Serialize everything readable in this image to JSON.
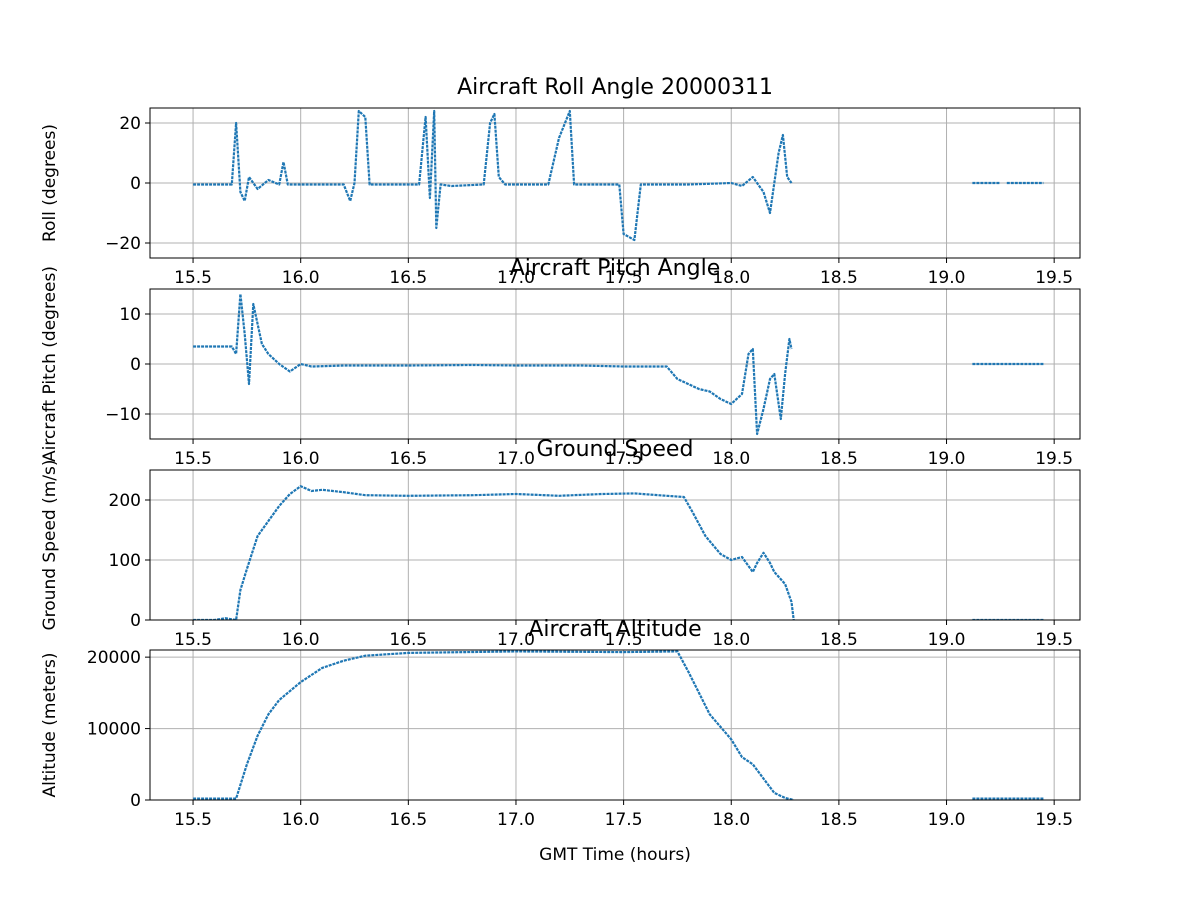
{
  "chart_data": [
    {
      "type": "scatter",
      "title": "Aircraft Roll Angle 20000311",
      "xlabel": "",
      "ylabel": "Roll (degrees)",
      "xlim": [
        15.3,
        19.62
      ],
      "ylim": [
        -25,
        25
      ],
      "xticks": [
        "15.5",
        "16.0",
        "16.5",
        "17.0",
        "17.5",
        "18.0",
        "18.5",
        "19.0",
        "19.5"
      ],
      "yticks": [
        "20",
        "0",
        "−20"
      ],
      "ytick_values": [
        20,
        0,
        -20
      ],
      "grid": true,
      "series": [
        {
          "values": [
            [
              15.5,
              -0.5
            ],
            [
              15.68,
              -0.5
            ],
            [
              15.7,
              20
            ],
            [
              15.72,
              -3
            ],
            [
              15.74,
              -6
            ],
            [
              15.76,
              2
            ],
            [
              15.8,
              -2
            ],
            [
              15.85,
              1
            ],
            [
              15.9,
              -0.5
            ],
            [
              15.92,
              7
            ],
            [
              15.94,
              -0.5
            ],
            [
              16.2,
              -0.5
            ],
            [
              16.23,
              -6
            ],
            [
              16.25,
              0
            ],
            [
              16.27,
              24
            ],
            [
              16.3,
              22
            ],
            [
              16.32,
              -0.5
            ],
            [
              16.55,
              -0.5
            ],
            [
              16.58,
              22
            ],
            [
              16.6,
              -5
            ],
            [
              16.62,
              24
            ],
            [
              16.63,
              -15
            ],
            [
              16.65,
              -0.5
            ],
            [
              16.7,
              -1
            ],
            [
              16.85,
              -0.5
            ],
            [
              16.88,
              20
            ],
            [
              16.9,
              23
            ],
            [
              16.92,
              2
            ],
            [
              16.95,
              -0.5
            ],
            [
              17.15,
              -0.5
            ],
            [
              17.2,
              15
            ],
            [
              17.25,
              24
            ],
            [
              17.27,
              -0.5
            ],
            [
              17.48,
              -0.5
            ],
            [
              17.5,
              -17
            ],
            [
              17.55,
              -19
            ],
            [
              17.58,
              -0.5
            ],
            [
              17.8,
              -0.5
            ],
            [
              18.0,
              0
            ],
            [
              18.05,
              -1
            ],
            [
              18.1,
              2
            ],
            [
              18.15,
              -3
            ],
            [
              18.18,
              -10
            ],
            [
              18.22,
              10
            ],
            [
              18.24,
              16
            ],
            [
              18.26,
              2
            ],
            [
              18.28,
              0
            ]
          ]
        },
        {
          "values": [
            [
              19.12,
              0
            ],
            [
              19.25,
              0
            ]
          ]
        },
        {
          "values": [
            [
              19.28,
              0
            ],
            [
              19.45,
              0
            ]
          ]
        }
      ]
    },
    {
      "type": "scatter",
      "title": "Aircraft Pitch Angle",
      "xlabel": "",
      "ylabel": "Aircraft Pitch (degrees)",
      "xlim": [
        15.3,
        19.62
      ],
      "ylim": [
        -15,
        15
      ],
      "xticks": [
        "15.5",
        "16.0",
        "16.5",
        "17.0",
        "17.5",
        "18.0",
        "18.5",
        "19.0",
        "19.5"
      ],
      "yticks": [
        "10",
        "0",
        "−10"
      ],
      "ytick_values": [
        10,
        0,
        -10
      ],
      "grid": true,
      "series": [
        {
          "values": [
            [
              15.5,
              3.5
            ],
            [
              15.68,
              3.5
            ],
            [
              15.7,
              2
            ],
            [
              15.72,
              14
            ],
            [
              15.74,
              6
            ],
            [
              15.76,
              -4
            ],
            [
              15.78,
              12
            ],
            [
              15.8,
              8
            ],
            [
              15.82,
              4
            ],
            [
              15.85,
              2
            ],
            [
              15.9,
              0
            ],
            [
              15.95,
              -1.5
            ],
            [
              16.0,
              0
            ],
            [
              16.05,
              -0.5
            ],
            [
              16.2,
              -0.3
            ],
            [
              16.5,
              -0.3
            ],
            [
              16.8,
              -0.2
            ],
            [
              17.0,
              -0.3
            ],
            [
              17.3,
              -0.3
            ],
            [
              17.5,
              -0.5
            ],
            [
              17.7,
              -0.5
            ],
            [
              17.75,
              -3
            ],
            [
              17.8,
              -4
            ],
            [
              17.85,
              -5
            ],
            [
              17.9,
              -5.5
            ],
            [
              17.95,
              -7
            ],
            [
              18.0,
              -8
            ],
            [
              18.05,
              -6
            ],
            [
              18.08,
              2
            ],
            [
              18.1,
              3
            ],
            [
              18.12,
              -14
            ],
            [
              18.15,
              -9
            ],
            [
              18.18,
              -3
            ],
            [
              18.2,
              -2
            ],
            [
              18.23,
              -11
            ],
            [
              18.25,
              -2
            ],
            [
              18.27,
              5
            ],
            [
              18.28,
              3
            ]
          ]
        },
        {
          "values": [
            [
              19.12,
              0
            ],
            [
              19.45,
              0
            ]
          ]
        }
      ]
    },
    {
      "type": "scatter",
      "title": "Ground Speed",
      "xlabel": "",
      "ylabel": "Ground Speed (m/s)",
      "xlim": [
        15.3,
        19.62
      ],
      "ylim": [
        0,
        250
      ],
      "xticks": [
        "15.5",
        "16.0",
        "16.5",
        "17.0",
        "17.5",
        "18.0",
        "18.5",
        "19.0",
        "19.5"
      ],
      "yticks": [
        "200",
        "100",
        "0"
      ],
      "ytick_values": [
        200,
        100,
        0
      ],
      "grid": true,
      "series": [
        {
          "values": [
            [
              15.5,
              0
            ],
            [
              15.6,
              0
            ],
            [
              15.65,
              3
            ],
            [
              15.7,
              0
            ],
            [
              15.72,
              50
            ],
            [
              15.75,
              85
            ],
            [
              15.8,
              140
            ],
            [
              15.85,
              165
            ],
            [
              15.9,
              190
            ],
            [
              15.95,
              210
            ],
            [
              16.0,
              223
            ],
            [
              16.05,
              215
            ],
            [
              16.1,
              217
            ],
            [
              16.2,
              213
            ],
            [
              16.3,
              208
            ],
            [
              16.5,
              207
            ],
            [
              16.8,
              208
            ],
            [
              17.0,
              210
            ],
            [
              17.2,
              207
            ],
            [
              17.4,
              210
            ],
            [
              17.55,
              211
            ],
            [
              17.7,
              207
            ],
            [
              17.78,
              205
            ],
            [
              17.82,
              180
            ],
            [
              17.88,
              140
            ],
            [
              17.95,
              110
            ],
            [
              18.0,
              100
            ],
            [
              18.05,
              105
            ],
            [
              18.1,
              80
            ],
            [
              18.12,
              95
            ],
            [
              18.15,
              112
            ],
            [
              18.18,
              95
            ],
            [
              18.2,
              80
            ],
            [
              18.25,
              60
            ],
            [
              18.28,
              30
            ],
            [
              18.29,
              0
            ]
          ]
        },
        {
          "values": [
            [
              19.12,
              0
            ],
            [
              19.45,
              0
            ]
          ]
        }
      ]
    },
    {
      "type": "scatter",
      "title": "Aircraft Altitude",
      "xlabel": "GMT Time (hours)",
      "ylabel": "Altitude (meters)",
      "xlim": [
        15.3,
        19.62
      ],
      "ylim": [
        0,
        21000
      ],
      "xticks": [
        "15.5",
        "16.0",
        "16.5",
        "17.0",
        "17.5",
        "18.0",
        "18.5",
        "19.0",
        "19.5"
      ],
      "yticks": [
        "20000",
        "10000",
        "0"
      ],
      "ytick_values": [
        20000,
        10000,
        0
      ],
      "grid": true,
      "series": [
        {
          "values": [
            [
              15.5,
              200
            ],
            [
              15.7,
              200
            ],
            [
              15.75,
              5000
            ],
            [
              15.8,
              9000
            ],
            [
              15.85,
              12000
            ],
            [
              15.9,
              14000
            ],
            [
              16.0,
              16500
            ],
            [
              16.1,
              18500
            ],
            [
              16.2,
              19500
            ],
            [
              16.3,
              20200
            ],
            [
              16.5,
              20600
            ],
            [
              17.0,
              20800
            ],
            [
              17.5,
              20700
            ],
            [
              17.75,
              20800
            ],
            [
              17.8,
              18000
            ],
            [
              17.85,
              15000
            ],
            [
              17.9,
              12000
            ],
            [
              18.0,
              8500
            ],
            [
              18.05,
              6000
            ],
            [
              18.1,
              5000
            ],
            [
              18.15,
              3000
            ],
            [
              18.2,
              1000
            ],
            [
              18.25,
              300
            ],
            [
              18.29,
              0
            ]
          ]
        },
        {
          "values": [
            [
              19.12,
              200
            ],
            [
              19.45,
              200
            ]
          ]
        }
      ]
    }
  ]
}
